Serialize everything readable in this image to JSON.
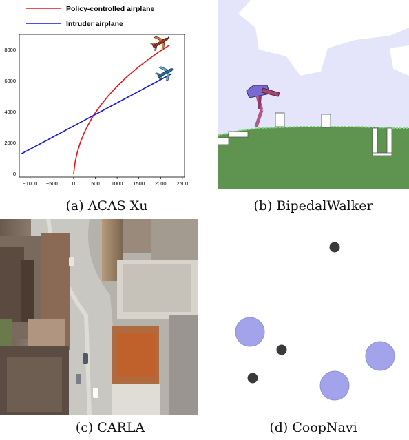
{
  "figure": {
    "captions": {
      "a": "(a) ACAS Xu",
      "b": "(b) BipedalWalker",
      "c": "(c) CARLA",
      "d": "(d) CoopNavi"
    }
  },
  "acas": {
    "legend": [
      {
        "label": "Policy-controlled airplane",
        "color": "#e8141a"
      },
      {
        "label": "Intruder airplane",
        "color": "#1414e6"
      }
    ]
  },
  "chart_data": {
    "type": "line",
    "title": "",
    "xlabel": "",
    "ylabel": "",
    "xlim": [
      -1250,
      2550
    ],
    "ylim": [
      -200,
      9000
    ],
    "xticks": [
      -1000,
      -500,
      0,
      500,
      1000,
      1500,
      2000,
      2500
    ],
    "yticks": [
      0,
      2000,
      4000,
      6000,
      8000
    ],
    "grid": false,
    "legend_placement": "top-left",
    "series": [
      {
        "name": "Policy-controlled airplane",
        "color": "#e8141a",
        "x": [
          0,
          30,
          80,
          150,
          250,
          350,
          450,
          600,
          800,
          1000,
          1200,
          1450,
          1700,
          1950,
          2200
        ],
        "y": [
          0,
          700,
          1350,
          2000,
          2700,
          3250,
          3750,
          4350,
          5050,
          5650,
          6200,
          6800,
          7350,
          7850,
          8300
        ]
      },
      {
        "name": "Intruder airplane",
        "color": "#1414e6",
        "x": [
          -1200,
          2250
        ],
        "y": [
          1300,
          6450
        ]
      }
    ]
  },
  "colors": {
    "bipedal_sky": "#e4e4fa",
    "bipedal_ground": "#5f9450",
    "bipedal_hull": "#7a6ad0",
    "coop_agent": "#a3a3ec",
    "coop_landmark": "#3a3a3a"
  }
}
